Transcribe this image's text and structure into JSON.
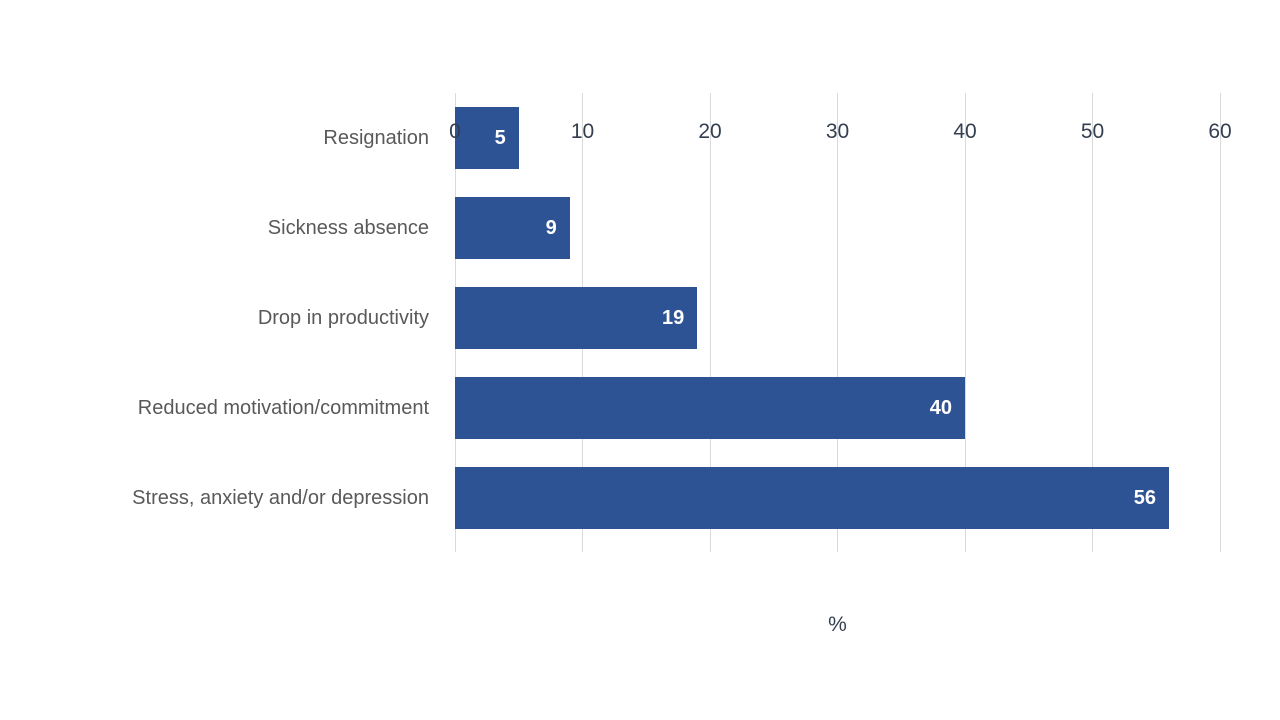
{
  "chart_data": {
    "type": "bar",
    "orientation": "horizontal",
    "title": "",
    "categories": [
      "Resignation",
      "Sickness absence",
      "Drop in productivity",
      "Reduced motivation/commitment",
      "Stress, anxiety and/or depression"
    ],
    "values": [
      5,
      9,
      19,
      40,
      56
    ],
    "xlabel": "%",
    "ylabel": "",
    "xlim": [
      0,
      60
    ],
    "xticks": [
      0,
      10,
      20,
      30,
      40,
      50,
      60
    ],
    "grid": true,
    "legend": "none",
    "data_label_position": "inside-end",
    "colors": {
      "bar": "#2E5394",
      "bar_value_label": "#FFFFFF",
      "category_label": "#595959",
      "tick_label": "#333F50",
      "gridline": "#D9D9D9",
      "background": "#FFFFFF"
    }
  }
}
